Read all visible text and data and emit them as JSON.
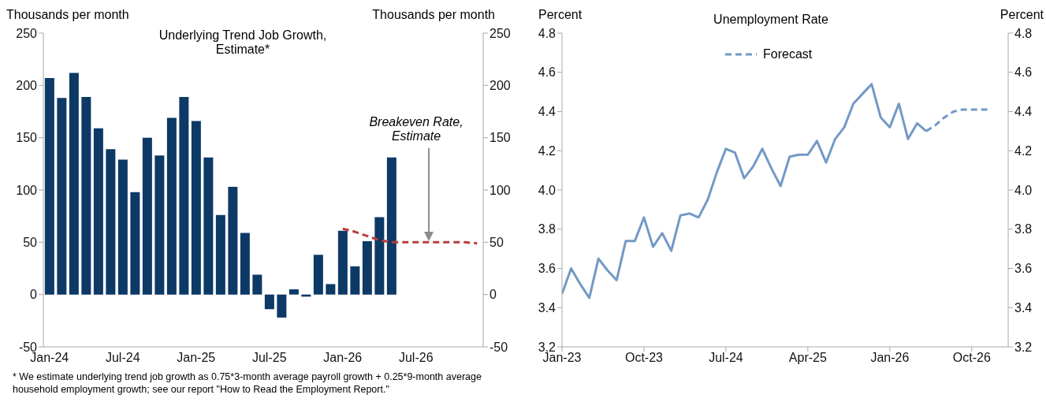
{
  "chart_data": [
    {
      "type": "bar",
      "title": "Underlying Trend Job Growth, Estimate*",
      "ylabel": "Thousands per month",
      "y2label": "Thousands per month",
      "categories": [
        "Jan-24",
        null,
        null,
        null,
        null,
        null,
        "Jul-24",
        null,
        null,
        null,
        null,
        null,
        "Jan-25",
        null,
        null,
        null,
        null,
        null,
        "Jul-25",
        null,
        null,
        null,
        null,
        null,
        "Jan-26",
        null,
        null,
        null,
        null,
        null,
        "Jul-26",
        null,
        null,
        null,
        null,
        null
      ],
      "series": [
        {
          "color": "#0d3966",
          "values": [
            207,
            188,
            212,
            189,
            159,
            139,
            129,
            98,
            150,
            133,
            169,
            189,
            166,
            131,
            76,
            103,
            59,
            19,
            -14,
            -22,
            5,
            -2,
            38,
            10,
            61,
            27,
            51,
            74,
            131,
            null,
            null,
            null,
            null,
            null,
            null,
            null
          ]
        },
        {
          "type": "line",
          "color": "#b83c3c",
          "line_style": "dashed",
          "values": [
            null,
            null,
            null,
            null,
            null,
            null,
            null,
            null,
            null,
            null,
            null,
            null,
            null,
            null,
            null,
            null,
            null,
            null,
            null,
            null,
            null,
            null,
            null,
            null,
            63,
            60,
            56,
            52,
            50,
            50,
            50,
            50,
            50,
            50,
            50,
            49
          ]
        }
      ],
      "ylim": [
        -50,
        250
      ],
      "yticks": [
        -50,
        0,
        50,
        100,
        150,
        200,
        250
      ],
      "y2lim": [
        -50,
        250
      ],
      "y2ticks": [
        -50,
        0,
        50,
        100,
        150,
        200,
        250
      ],
      "annotations": [
        "Breakeven Rate, Estimate",
        "* We estimate underlying trend job growth as 0.75*3-month average payroll growth + 0.25*9-month average household employment growth; see our report \"How to Read the Employment Report.\""
      ],
      "legend": false,
      "grid": false,
      "marker": "none"
    },
    {
      "type": "line",
      "title": "Unemployment Rate",
      "ylabel": "Percent",
      "y2label": "Percent",
      "series": [
        {
          "color": "#7399c6",
          "line_style": "solid",
          "x": [
            "2023-01",
            "2023-02",
            "2023-03",
            "2023-04",
            "2023-05",
            "2023-06",
            "2023-07",
            "2023-08",
            "2023-09",
            "2023-10",
            "2023-11",
            "2023-12",
            "2024-01",
            "2024-02",
            "2024-03",
            "2024-04",
            "2024-05",
            "2024-06",
            "2024-07",
            "2024-08",
            "2024-09",
            "2024-10",
            "2024-11",
            "2024-12",
            "2025-01",
            "2025-02",
            "2025-03",
            "2025-04",
            "2025-05",
            "2025-06",
            "2025-07",
            "2025-08",
            "2025-09",
            "2025-10",
            "2025-11",
            "2025-12",
            "2026-01",
            "2026-02",
            "2026-03",
            "2026-04",
            "2026-05"
          ],
          "values": [
            3.47,
            3.6,
            3.52,
            3.45,
            3.65,
            3.59,
            3.54,
            3.74,
            3.74,
            3.86,
            3.71,
            3.78,
            3.69,
            3.87,
            3.88,
            3.86,
            3.95,
            4.09,
            4.21,
            4.19,
            4.06,
            4.12,
            4.21,
            4.11,
            4.02,
            4.17,
            4.18,
            4.18,
            4.25,
            4.14,
            4.26,
            4.32,
            4.44,
            4.49,
            4.54,
            4.37,
            4.32,
            4.44,
            4.26,
            4.34,
            4.3
          ]
        },
        {
          "name": "Forecast",
          "color": "#7399c6",
          "line_style": "dashed",
          "x": [
            "2026-05",
            "2026-06",
            "2026-07",
            "2026-08",
            "2026-09",
            "2026-10",
            "2026-11",
            "2026-12"
          ],
          "values": [
            4.3,
            4.33,
            4.37,
            4.4,
            4.41,
            4.41,
            4.41,
            4.41
          ]
        }
      ],
      "xlim": [
        "2023-01",
        "2027-02"
      ],
      "xticks": [
        {
          "value": "2023-01",
          "label": "Jan-23"
        },
        {
          "value": "2023-10",
          "label": "Oct-23"
        },
        {
          "value": "2024-07",
          "label": "Jul-24"
        },
        {
          "value": "2025-04",
          "label": "Apr-25"
        },
        {
          "value": "2026-01",
          "label": "Jan-26"
        },
        {
          "value": "2026-10",
          "label": "Oct-26"
        }
      ],
      "ylim": [
        3.2,
        4.8
      ],
      "yticks": [
        3.2,
        3.4,
        3.6,
        3.8,
        {
          "value": 4.0,
          "label": "4.0"
        },
        4.2,
        4.4,
        4.6,
        4.8
      ],
      "y2lim": [
        3.2,
        4.8
      ],
      "y2ticks": [
        3.2,
        3.4,
        3.6,
        3.8,
        {
          "value": 4.0,
          "label": "4.0"
        },
        4.2,
        4.4,
        4.6,
        4.8
      ],
      "legend": "top left",
      "grid": false,
      "marker": "none"
    }
  ]
}
